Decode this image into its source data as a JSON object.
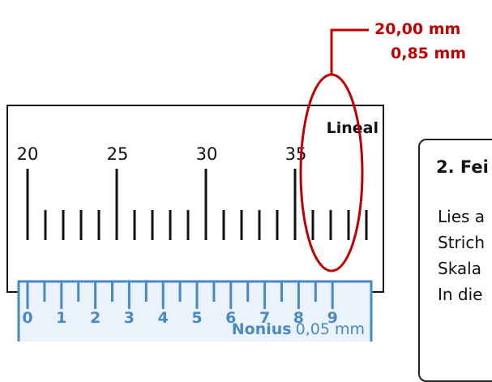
{
  "callout": {
    "main_reading": "20,00 mm",
    "vernier_reading": "0,85 mm",
    "color": "#c00000"
  },
  "ruler": {
    "label": "Lineal",
    "tick_labels": [
      "20",
      "25",
      "30",
      "35"
    ],
    "color": "#111111"
  },
  "vernier": {
    "digits": [
      "0",
      "1",
      "2",
      "3",
      "4",
      "5",
      "6",
      "7",
      "8",
      "9"
    ],
    "name": "Nonius",
    "resolution": "0,05 mm",
    "color": "#4a8ac4",
    "fill": "#eaf2fb"
  },
  "panel": {
    "title": "2. Fei",
    "lines": [
      "Lies a",
      "Strich",
      "Skala",
      "In die"
    ]
  }
}
